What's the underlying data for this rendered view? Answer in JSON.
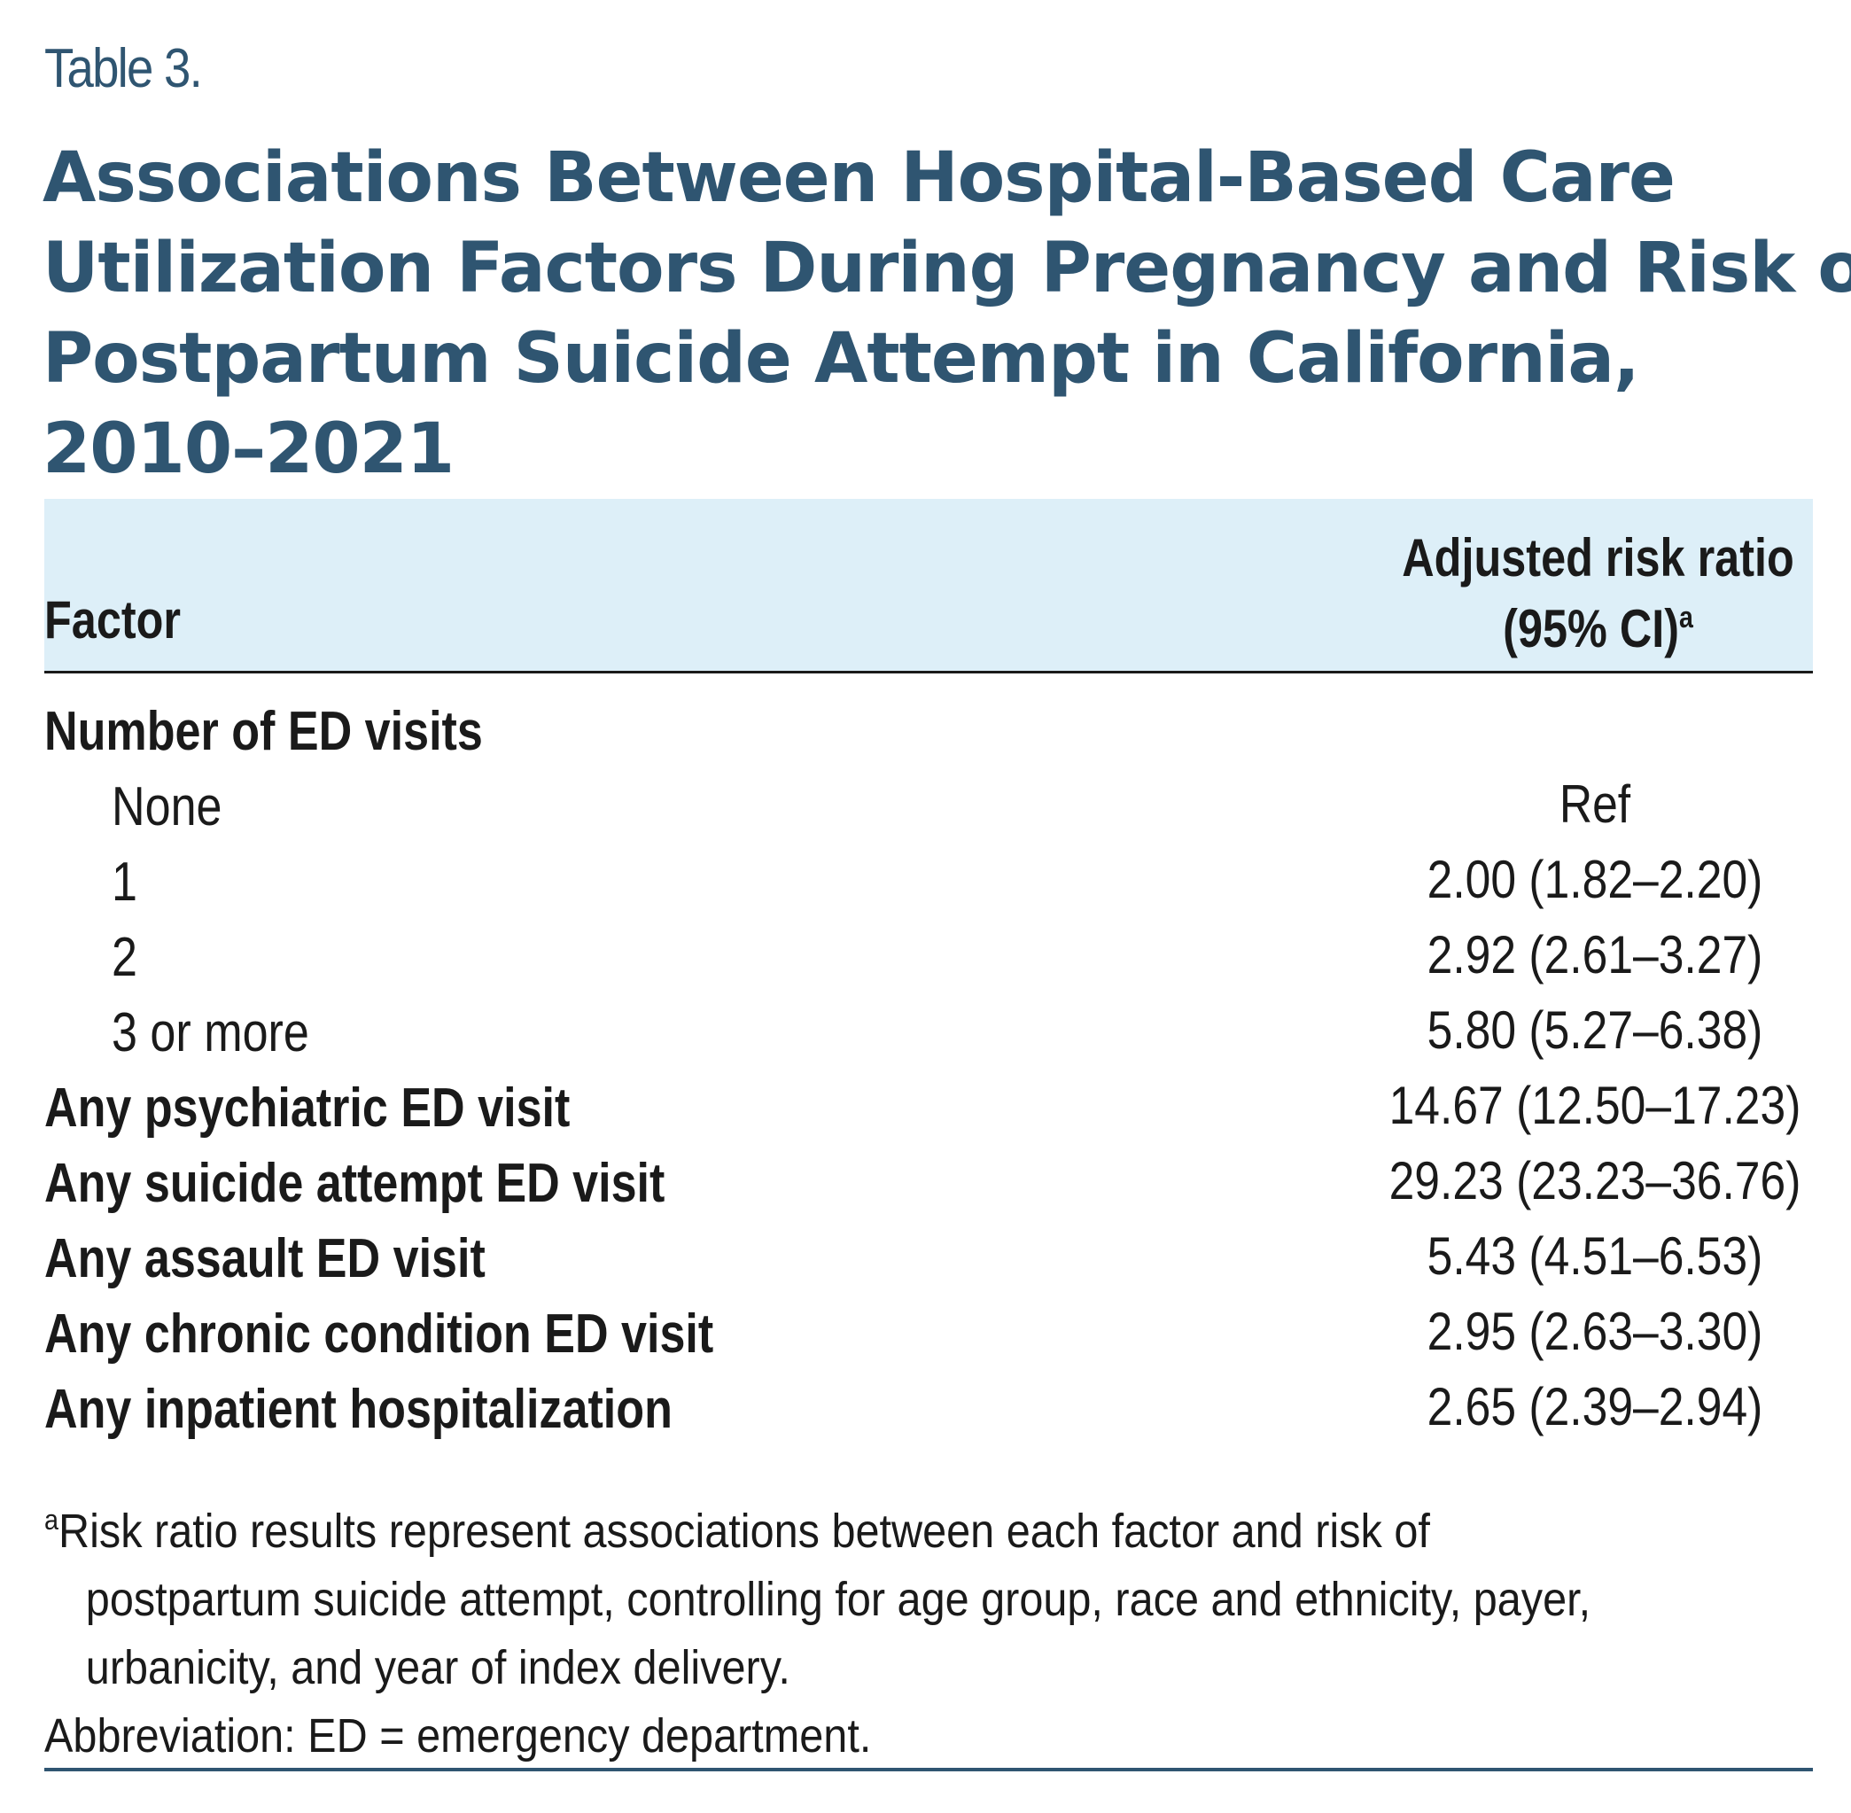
{
  "table_label": "Table 3.",
  "title_lines": [
    "Associations Between Hospital-Based Care",
    "Utilization Factors During Pregnancy and Risk of",
    "Postpartum Suicide Attempt in California,",
    "2010–2021"
  ],
  "header": {
    "factor": "Factor",
    "risk_ratio_line1": "Adjusted risk ratio",
    "risk_ratio_line2": "(95% CI)",
    "risk_ratio_sup": "a"
  },
  "rows": [
    {
      "label": "Number of ED visits",
      "value": "",
      "bold": true,
      "indent": false
    },
    {
      "label": "None",
      "value": "Ref",
      "bold": false,
      "indent": true
    },
    {
      "label": "1",
      "value": "2.00 (1.82–2.20)",
      "bold": false,
      "indent": true
    },
    {
      "label": "2",
      "value": "2.92 (2.61–3.27)",
      "bold": false,
      "indent": true
    },
    {
      "label": "3 or more",
      "value": "5.80 (5.27–6.38)",
      "bold": false,
      "indent": true
    },
    {
      "label": "Any psychiatric ED visit",
      "value": "14.67 (12.50–17.23)",
      "bold": true,
      "indent": false
    },
    {
      "label": "Any suicide attempt ED visit",
      "value": "29.23 (23.23–36.76)",
      "bold": true,
      "indent": false
    },
    {
      "label": "Any assault ED visit",
      "value": "5.43 (4.51–6.53)",
      "bold": true,
      "indent": false
    },
    {
      "label": "Any chronic condition ED visit",
      "value": "2.95 (2.63–3.30)",
      "bold": true,
      "indent": false
    },
    {
      "label": "Any inpatient hospitalization",
      "value": "2.65 (2.39–2.94)",
      "bold": true,
      "indent": false
    }
  ],
  "footnote": {
    "sup": "a",
    "line1": "Risk ratio results represent associations between each factor and risk of",
    "line2": "postpartum suicide attempt, controlling for age group, race and ethnicity, payer,",
    "line3": "urbanicity, and year of index delivery.",
    "abbreviation": "Abbreviation: ED = emergency department."
  },
  "colors": {
    "title": "#2f5571",
    "header_bg": "#ddeff8",
    "rule": "#2f5571"
  }
}
